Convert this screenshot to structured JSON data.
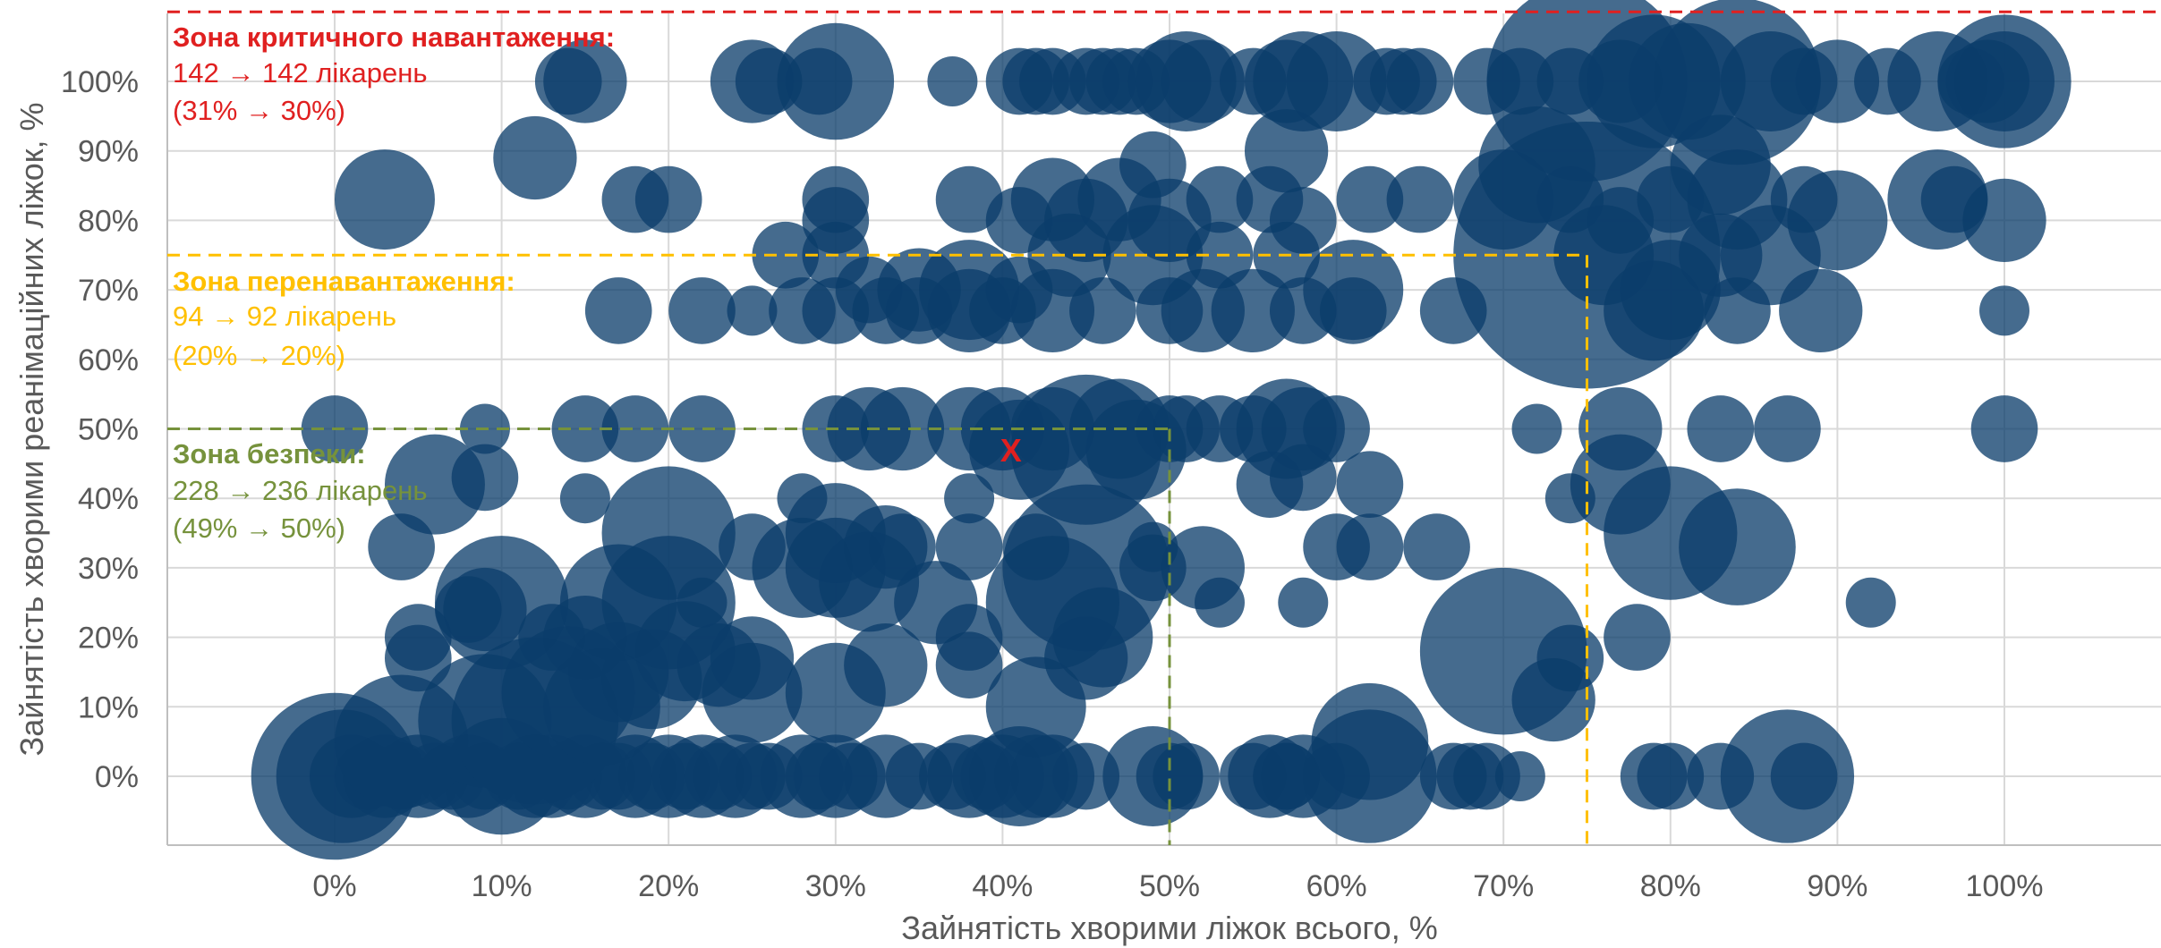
{
  "chart_data": {
    "type": "scatter",
    "subtype": "bubble",
    "xlabel": "Зайнятість хворими ліжок всього, %",
    "ylabel": "Зайнятість хворими реанімаційних ліжок, %",
    "xlim": [
      -10,
      110
    ],
    "ylim": [
      -10,
      110
    ],
    "x_ticks": [
      0,
      10,
      20,
      30,
      40,
      50,
      60,
      70,
      80,
      90,
      100
    ],
    "y_ticks": [
      0,
      10,
      20,
      30,
      40,
      50,
      60,
      70,
      80,
      90,
      100
    ],
    "x_tick_labels": [
      "0%",
      "10%",
      "20%",
      "30%",
      "40%",
      "50%",
      "60%",
      "70%",
      "80%",
      "90%",
      "100%"
    ],
    "y_tick_labels": [
      "0%",
      "10%",
      "20%",
      "30%",
      "40%",
      "50%",
      "60%",
      "70%",
      "80%",
      "90%",
      "100%"
    ],
    "grid": true,
    "colors": {
      "bubble": "#0b3d6b",
      "safe": "#76923c",
      "overload": "#ffc000",
      "critical": "#e02020",
      "marker": "#e02020"
    },
    "zones": [
      {
        "key": "safe",
        "x_limit": 50,
        "y_limit": 50,
        "title": "Зона безпеки:",
        "line1": "228 → 236 лікарень",
        "line2": "(49% → 50%)"
      },
      {
        "key": "overload",
        "x_limit": 75,
        "y_limit": 75,
        "title": "Зона перенавантаження:",
        "line1": "94 → 92 лікарень",
        "line2": "(20% → 20%)"
      },
      {
        "key": "critical",
        "x_limit": null,
        "y_limit": 110,
        "title": "Зона критичного навантаження:",
        "line1": "142 → 142 лікарень",
        "line2": "(31% → 30%)"
      }
    ],
    "marker": {
      "label": "X",
      "x": 40.5,
      "y": 47
    },
    "points": [
      [
        0,
        0,
        5
      ],
      [
        0.5,
        0,
        4
      ],
      [
        1,
        0,
        2.5
      ],
      [
        2,
        0,
        2
      ],
      [
        3,
        0,
        2.5
      ],
      [
        4,
        0,
        2
      ],
      [
        5,
        0,
        2.5
      ],
      [
        6,
        0,
        2
      ],
      [
        7,
        0,
        2
      ],
      [
        8,
        0,
        2.5
      ],
      [
        9,
        0,
        2
      ],
      [
        10,
        0,
        3.5
      ],
      [
        11,
        0,
        2
      ],
      [
        12,
        0,
        2.5
      ],
      [
        13,
        0,
        2.5
      ],
      [
        14,
        0,
        2
      ],
      [
        15,
        0,
        2.5
      ],
      [
        16,
        0,
        2
      ],
      [
        17,
        0,
        2
      ],
      [
        18,
        0,
        2.5
      ],
      [
        19,
        0,
        2
      ],
      [
        20,
        0,
        2.5
      ],
      [
        21,
        0,
        2
      ],
      [
        22,
        0,
        2.5
      ],
      [
        23,
        0,
        2
      ],
      [
        24,
        0,
        2.5
      ],
      [
        25,
        0,
        2
      ],
      [
        26,
        0,
        2
      ],
      [
        28,
        0,
        2.5
      ],
      [
        29,
        0,
        2
      ],
      [
        30,
        0,
        2.5
      ],
      [
        31,
        0,
        2
      ],
      [
        33,
        0,
        2.5
      ],
      [
        35,
        0,
        2
      ],
      [
        37,
        0,
        2
      ],
      [
        38,
        0,
        2.5
      ],
      [
        39,
        0,
        2
      ],
      [
        40,
        0,
        2.5
      ],
      [
        41,
        0,
        3
      ],
      [
        42,
        0,
        2.5
      ],
      [
        43,
        0,
        2.5
      ],
      [
        45,
        0,
        2
      ],
      [
        49,
        0,
        3
      ],
      [
        50,
        0,
        2
      ],
      [
        51,
        0,
        2
      ],
      [
        55,
        0,
        2
      ],
      [
        56,
        0,
        2.5
      ],
      [
        57,
        0,
        2
      ],
      [
        58,
        0,
        2.5
      ],
      [
        60,
        0,
        2
      ],
      [
        62,
        0,
        4
      ],
      [
        67,
        0,
        2
      ],
      [
        68,
        0,
        2
      ],
      [
        69,
        0,
        2
      ],
      [
        71,
        0,
        1.5
      ],
      [
        79,
        0,
        2
      ],
      [
        80,
        0,
        2
      ],
      [
        83,
        0,
        2
      ],
      [
        87,
        0,
        4
      ],
      [
        88,
        0,
        2
      ],
      [
        4,
        5,
        4
      ],
      [
        9,
        8,
        4
      ],
      [
        12,
        8,
        5
      ],
      [
        14,
        12,
        4
      ],
      [
        16,
        10,
        3.5
      ],
      [
        17,
        15,
        3
      ],
      [
        19,
        14,
        3
      ],
      [
        21,
        18,
        3
      ],
      [
        23,
        16,
        2.5
      ],
      [
        25,
        12,
        3
      ],
      [
        25,
        17,
        2.5
      ],
      [
        30,
        12,
        3
      ],
      [
        33,
        16,
        2.5
      ],
      [
        38,
        16,
        2
      ],
      [
        42,
        10,
        3
      ],
      [
        45,
        17,
        2.5
      ],
      [
        57,
        0,
        2
      ],
      [
        62,
        5,
        3.5
      ],
      [
        70,
        18,
        5
      ],
      [
        73,
        11,
        2.5
      ],
      [
        74,
        17,
        2
      ],
      [
        78,
        20,
        2
      ],
      [
        5,
        17,
        2
      ],
      [
        5,
        20,
        2
      ],
      [
        8,
        24,
        2
      ],
      [
        9,
        24,
        2.5
      ],
      [
        10,
        25,
        4
      ],
      [
        13,
        20,
        2
      ],
      [
        15,
        20,
        2.5
      ],
      [
        17,
        25,
        3.5
      ],
      [
        20,
        25,
        4
      ],
      [
        22,
        25,
        1.5
      ],
      [
        25,
        33,
        2
      ],
      [
        28,
        30,
        3
      ],
      [
        30,
        30,
        3
      ],
      [
        32,
        28,
        3
      ],
      [
        33,
        33,
        2.5
      ],
      [
        36,
        25,
        2.5
      ],
      [
        38,
        20,
        2
      ],
      [
        42,
        33,
        2
      ],
      [
        43,
        25,
        4
      ],
      [
        45,
        30,
        5
      ],
      [
        46,
        20,
        3
      ],
      [
        49,
        30,
        2
      ],
      [
        52,
        30,
        2.5
      ],
      [
        53,
        25,
        1.5
      ],
      [
        58,
        25,
        1.5
      ],
      [
        60,
        33,
        2
      ],
      [
        62,
        33,
        2
      ],
      [
        66,
        33,
        2
      ],
      [
        80,
        35,
        4
      ],
      [
        84,
        33,
        3.5
      ],
      [
        92,
        25,
        1.5
      ],
      [
        4,
        33,
        2
      ],
      [
        6,
        42,
        3
      ],
      [
        9,
        43,
        2
      ],
      [
        9,
        50,
        1.5
      ],
      [
        15,
        40,
        1.5
      ],
      [
        20,
        35,
        4
      ],
      [
        28,
        40,
        1.5
      ],
      [
        30,
        35,
        3
      ],
      [
        34,
        33,
        2
      ],
      [
        38,
        33,
        2
      ],
      [
        38,
        40,
        1.5
      ],
      [
        41,
        47,
        3
      ],
      [
        45,
        47,
        4.5
      ],
      [
        48,
        47,
        3
      ],
      [
        49,
        33,
        1.5
      ],
      [
        51,
        50,
        2
      ],
      [
        56,
        42,
        2
      ],
      [
        58,
        43,
        2
      ],
      [
        58,
        50,
        2.5
      ],
      [
        62,
        42,
        2
      ],
      [
        74,
        40,
        1.5
      ],
      [
        77,
        42,
        3
      ],
      [
        0,
        50,
        2
      ],
      [
        15,
        50,
        2
      ],
      [
        18,
        50,
        2
      ],
      [
        22,
        50,
        2
      ],
      [
        30,
        50,
        2
      ],
      [
        32,
        50,
        2.5
      ],
      [
        34,
        50,
        2.5
      ],
      [
        38,
        50,
        2.5
      ],
      [
        40,
        50,
        2.5
      ],
      [
        43,
        50,
        2.5
      ],
      [
        47,
        50,
        3
      ],
      [
        50,
        50,
        2
      ],
      [
        53,
        50,
        2
      ],
      [
        55,
        50,
        2
      ],
      [
        57,
        50,
        3
      ],
      [
        60,
        50,
        2
      ],
      [
        72,
        50,
        1.5
      ],
      [
        77,
        50,
        2.5
      ],
      [
        83,
        50,
        2
      ],
      [
        87,
        50,
        2
      ],
      [
        100,
        50,
        2
      ],
      [
        17,
        67,
        2
      ],
      [
        22,
        67,
        2
      ],
      [
        25,
        67,
        1.5
      ],
      [
        28,
        67,
        2
      ],
      [
        30,
        67,
        2
      ],
      [
        33,
        67,
        2
      ],
      [
        35,
        67,
        2
      ],
      [
        38,
        67,
        2.5
      ],
      [
        40,
        67,
        2
      ],
      [
        43,
        67,
        2.5
      ],
      [
        46,
        67,
        2
      ],
      [
        50,
        67,
        2
      ],
      [
        52,
        67,
        2.5
      ],
      [
        55,
        67,
        2.5
      ],
      [
        58,
        67,
        2
      ],
      [
        61,
        67,
        2
      ],
      [
        67,
        67,
        2
      ],
      [
        75,
        75,
        8
      ],
      [
        79,
        67,
        3
      ],
      [
        84,
        67,
        2
      ],
      [
        89,
        67,
        2.5
      ],
      [
        100,
        67,
        1.5
      ],
      [
        27,
        75,
        2
      ],
      [
        30,
        75,
        2
      ],
      [
        32,
        70,
        2
      ],
      [
        35,
        70,
        2.5
      ],
      [
        38,
        70,
        3
      ],
      [
        41,
        70,
        2
      ],
      [
        44,
        75,
        2.5
      ],
      [
        49,
        75,
        3
      ],
      [
        53,
        75,
        2
      ],
      [
        57,
        75,
        2
      ],
      [
        61,
        70,
        3
      ],
      [
        76,
        75,
        3
      ],
      [
        80,
        70,
        3
      ],
      [
        83,
        75,
        2.5
      ],
      [
        86,
        75,
        3
      ],
      [
        3,
        83,
        3
      ],
      [
        18,
        83,
        2
      ],
      [
        20,
        83,
        2
      ],
      [
        30,
        80,
        2
      ],
      [
        30,
        83,
        2
      ],
      [
        38,
        83,
        2
      ],
      [
        41,
        80,
        2
      ],
      [
        43,
        83,
        2.5
      ],
      [
        45,
        80,
        2.5
      ],
      [
        47,
        83,
        2.5
      ],
      [
        50,
        80,
        2.5
      ],
      [
        53,
        83,
        2
      ],
      [
        56,
        83,
        2
      ],
      [
        58,
        80,
        2
      ],
      [
        62,
        83,
        2
      ],
      [
        65,
        83,
        2
      ],
      [
        70,
        83,
        3
      ],
      [
        74,
        83,
        2
      ],
      [
        77,
        80,
        2
      ],
      [
        80,
        83,
        2
      ],
      [
        84,
        83,
        3
      ],
      [
        88,
        83,
        2
      ],
      [
        90,
        80,
        3
      ],
      [
        96,
        83,
        3
      ],
      [
        97,
        83,
        2
      ],
      [
        100,
        80,
        2.5
      ],
      [
        12,
        89,
        2.5
      ],
      [
        49,
        88,
        2
      ],
      [
        57,
        90,
        2.5
      ],
      [
        72,
        88,
        3.5
      ],
      [
        83,
        88,
        3
      ],
      [
        14,
        100,
        2
      ],
      [
        15,
        100,
        2.5
      ],
      [
        25,
        100,
        2.5
      ],
      [
        26,
        100,
        2
      ],
      [
        29,
        100,
        2
      ],
      [
        30,
        100,
        3.5
      ],
      [
        37,
        100,
        1.5
      ],
      [
        41,
        100,
        2
      ],
      [
        42,
        100,
        2
      ],
      [
        43,
        100,
        2
      ],
      [
        45,
        100,
        2
      ],
      [
        46,
        100,
        2
      ],
      [
        47,
        100,
        2
      ],
      [
        48,
        100,
        2
      ],
      [
        50,
        100,
        2.5
      ],
      [
        51,
        100,
        3
      ],
      [
        52,
        100,
        2.5
      ],
      [
        55,
        100,
        2
      ],
      [
        57,
        100,
        2.5
      ],
      [
        58,
        100,
        3
      ],
      [
        60,
        100,
        3
      ],
      [
        63,
        100,
        2
      ],
      [
        64,
        100,
        2
      ],
      [
        65,
        100,
        2
      ],
      [
        69,
        100,
        2
      ],
      [
        71,
        100,
        2
      ],
      [
        74,
        100,
        2
      ],
      [
        75,
        100,
        6
      ],
      [
        77,
        100,
        2.5
      ],
      [
        79,
        100,
        4
      ],
      [
        81,
        100,
        3.5
      ],
      [
        84,
        100,
        5
      ],
      [
        86,
        100,
        3
      ],
      [
        88,
        100,
        2
      ],
      [
        90,
        100,
        2.5
      ],
      [
        93,
        100,
        2
      ],
      [
        96,
        100,
        3
      ],
      [
        98,
        100,
        2
      ],
      [
        99,
        100,
        2.5
      ],
      [
        100,
        100,
        4
      ],
      [
        100,
        100,
        3
      ]
    ]
  }
}
